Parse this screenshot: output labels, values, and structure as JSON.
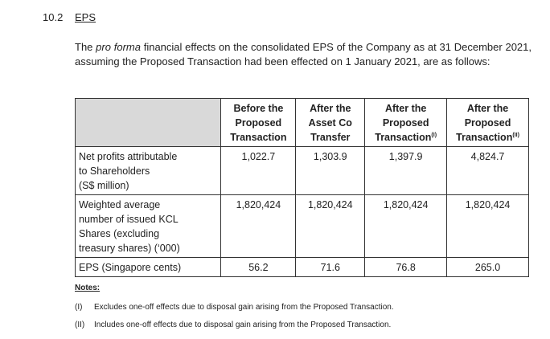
{
  "section": {
    "number": "10.2",
    "title": "EPS"
  },
  "intro": {
    "part1": "The ",
    "emphasis": "pro forma",
    "part2": " financial effects on the consolidated EPS of the Company as at 31 December 2021, assuming the Proposed Transaction had been effected on 1 January 2021, are as follows:"
  },
  "table": {
    "headers": [
      {
        "line1": "Before the",
        "line2": "Proposed",
        "line3": "Transaction",
        "sup": ""
      },
      {
        "line1": "After the",
        "line2": "Asset Co",
        "line3": "Transfer",
        "sup": ""
      },
      {
        "line1": "After the",
        "line2": "Proposed",
        "line3": "Transaction",
        "sup": "(I)"
      },
      {
        "line1": "After the",
        "line2": "Proposed",
        "line3": "Transaction",
        "sup": "(II)"
      }
    ],
    "rows": [
      {
        "label_lines": [
          "Net profits attributable",
          "to Shareholders",
          "(S$ million)"
        ],
        "values": [
          "1,022.7",
          "1,303.9",
          "1,397.9",
          "4,824.7"
        ]
      },
      {
        "label_lines": [
          "Weighted average",
          "number of issued KCL",
          "Shares (excluding",
          "treasury shares) (‘000)"
        ],
        "values": [
          "1,820,424",
          "1,820,424",
          "1,820,424",
          "1,820,424"
        ]
      },
      {
        "label_lines": [
          "EPS (Singapore cents)"
        ],
        "values": [
          "56.2",
          "71.6",
          "76.8",
          "265.0"
        ]
      }
    ]
  },
  "notes": {
    "title": "Notes:",
    "items": [
      {
        "marker": "(I)",
        "text": "Excludes one-off effects due to disposal gain arising from the Proposed Transaction."
      },
      {
        "marker": "(II)",
        "text": "Includes one-off effects due to disposal gain arising from the Proposed Transaction."
      }
    ]
  }
}
